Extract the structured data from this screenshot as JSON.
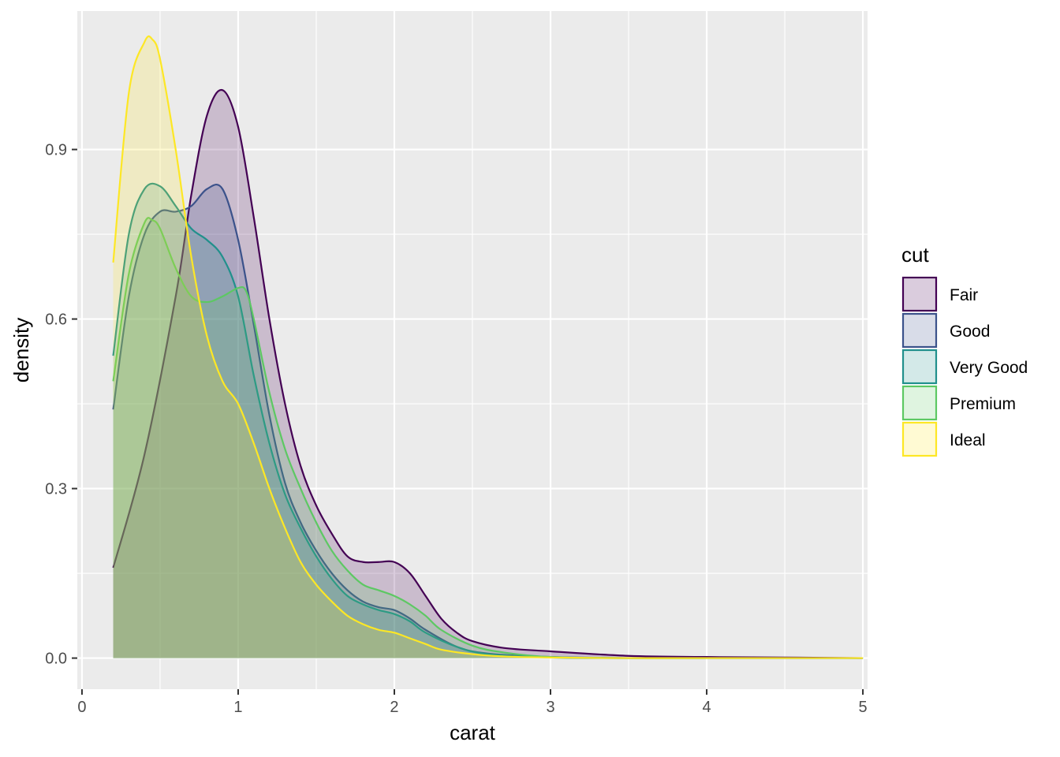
{
  "chart_data": {
    "type": "area",
    "xlabel": "carat",
    "ylabel": "density",
    "xlim": [
      -0.03,
      5.03
    ],
    "ylim": [
      -0.055,
      1.145
    ],
    "x_ticks": [
      0,
      1,
      2,
      3,
      4,
      5
    ],
    "x_tick_labels": [
      "0",
      "1",
      "2",
      "3",
      "4",
      "5"
    ],
    "y_ticks": [
      0.0,
      0.3,
      0.6,
      0.9
    ],
    "y_tick_labels": [
      "0.0",
      "0.3",
      "0.6",
      "0.9"
    ],
    "grid": true,
    "legend": {
      "title": "cut",
      "position": "right"
    },
    "fill_opacity": 0.2,
    "series": [
      {
        "name": "Fair",
        "color": "#440154",
        "x": [
          0.2,
          0.4,
          0.6,
          0.7,
          0.8,
          0.9,
          1.0,
          1.1,
          1.2,
          1.3,
          1.4,
          1.5,
          1.6,
          1.7,
          1.8,
          1.9,
          2.0,
          2.1,
          2.2,
          2.3,
          2.4,
          2.5,
          2.7,
          3.0,
          3.5,
          4.0,
          4.5,
          5.0
        ],
        "y": [
          0.16,
          0.36,
          0.64,
          0.82,
          0.96,
          1.005,
          0.94,
          0.78,
          0.6,
          0.45,
          0.34,
          0.27,
          0.22,
          0.18,
          0.17,
          0.17,
          0.17,
          0.15,
          0.11,
          0.07,
          0.045,
          0.03,
          0.018,
          0.012,
          0.004,
          0.002,
          0.001,
          0.0
        ]
      },
      {
        "name": "Good",
        "color": "#3b528b",
        "x": [
          0.2,
          0.3,
          0.4,
          0.5,
          0.6,
          0.7,
          0.8,
          0.9,
          1.0,
          1.1,
          1.2,
          1.3,
          1.4,
          1.5,
          1.6,
          1.7,
          1.8,
          1.9,
          2.0,
          2.1,
          2.2,
          2.4,
          2.6,
          3.0,
          3.5,
          4.0,
          5.0
        ],
        "y": [
          0.44,
          0.64,
          0.75,
          0.79,
          0.79,
          0.8,
          0.83,
          0.83,
          0.74,
          0.59,
          0.43,
          0.31,
          0.24,
          0.19,
          0.15,
          0.12,
          0.1,
          0.09,
          0.085,
          0.07,
          0.05,
          0.02,
          0.008,
          0.002,
          0.0,
          0.0,
          0.0
        ]
      },
      {
        "name": "Very Good",
        "color": "#21908c",
        "x": [
          0.2,
          0.3,
          0.4,
          0.5,
          0.6,
          0.7,
          0.8,
          0.9,
          1.0,
          1.1,
          1.2,
          1.3,
          1.4,
          1.5,
          1.6,
          1.7,
          1.8,
          1.9,
          2.0,
          2.1,
          2.2,
          2.4,
          2.6,
          3.0,
          3.5,
          4.0,
          5.0
        ],
        "y": [
          0.535,
          0.75,
          0.83,
          0.835,
          0.8,
          0.76,
          0.74,
          0.71,
          0.64,
          0.5,
          0.38,
          0.29,
          0.23,
          0.18,
          0.14,
          0.11,
          0.095,
          0.085,
          0.078,
          0.065,
          0.045,
          0.02,
          0.007,
          0.001,
          0.0,
          0.0,
          0.0
        ]
      },
      {
        "name": "Premium",
        "color": "#5dc863",
        "x": [
          0.2,
          0.3,
          0.4,
          0.45,
          0.5,
          0.6,
          0.7,
          0.8,
          0.9,
          1.0,
          1.05,
          1.1,
          1.2,
          1.3,
          1.4,
          1.5,
          1.6,
          1.7,
          1.8,
          1.9,
          2.0,
          2.1,
          2.2,
          2.3,
          2.5,
          2.7,
          3.0,
          3.5,
          4.0,
          5.0
        ],
        "y": [
          0.49,
          0.68,
          0.77,
          0.775,
          0.76,
          0.69,
          0.64,
          0.63,
          0.64,
          0.655,
          0.65,
          0.6,
          0.47,
          0.37,
          0.3,
          0.24,
          0.19,
          0.155,
          0.13,
          0.12,
          0.11,
          0.095,
          0.075,
          0.05,
          0.022,
          0.01,
          0.002,
          0.0,
          0.0,
          0.0
        ]
      },
      {
        "name": "Ideal",
        "color": "#fde725",
        "x": [
          0.2,
          0.3,
          0.4,
          0.45,
          0.5,
          0.6,
          0.7,
          0.8,
          0.9,
          1.0,
          1.1,
          1.2,
          1.3,
          1.4,
          1.5,
          1.6,
          1.7,
          1.8,
          1.9,
          2.0,
          2.1,
          2.2,
          2.3,
          2.5,
          2.7,
          3.0,
          3.5,
          4.0,
          5.0
        ],
        "y": [
          0.7,
          1.0,
          1.09,
          1.095,
          1.06,
          0.9,
          0.71,
          0.57,
          0.49,
          0.45,
          0.38,
          0.3,
          0.23,
          0.17,
          0.13,
          0.1,
          0.075,
          0.06,
          0.05,
          0.045,
          0.035,
          0.025,
          0.015,
          0.007,
          0.003,
          0.001,
          0.0,
          0.0,
          0.0
        ]
      }
    ]
  }
}
